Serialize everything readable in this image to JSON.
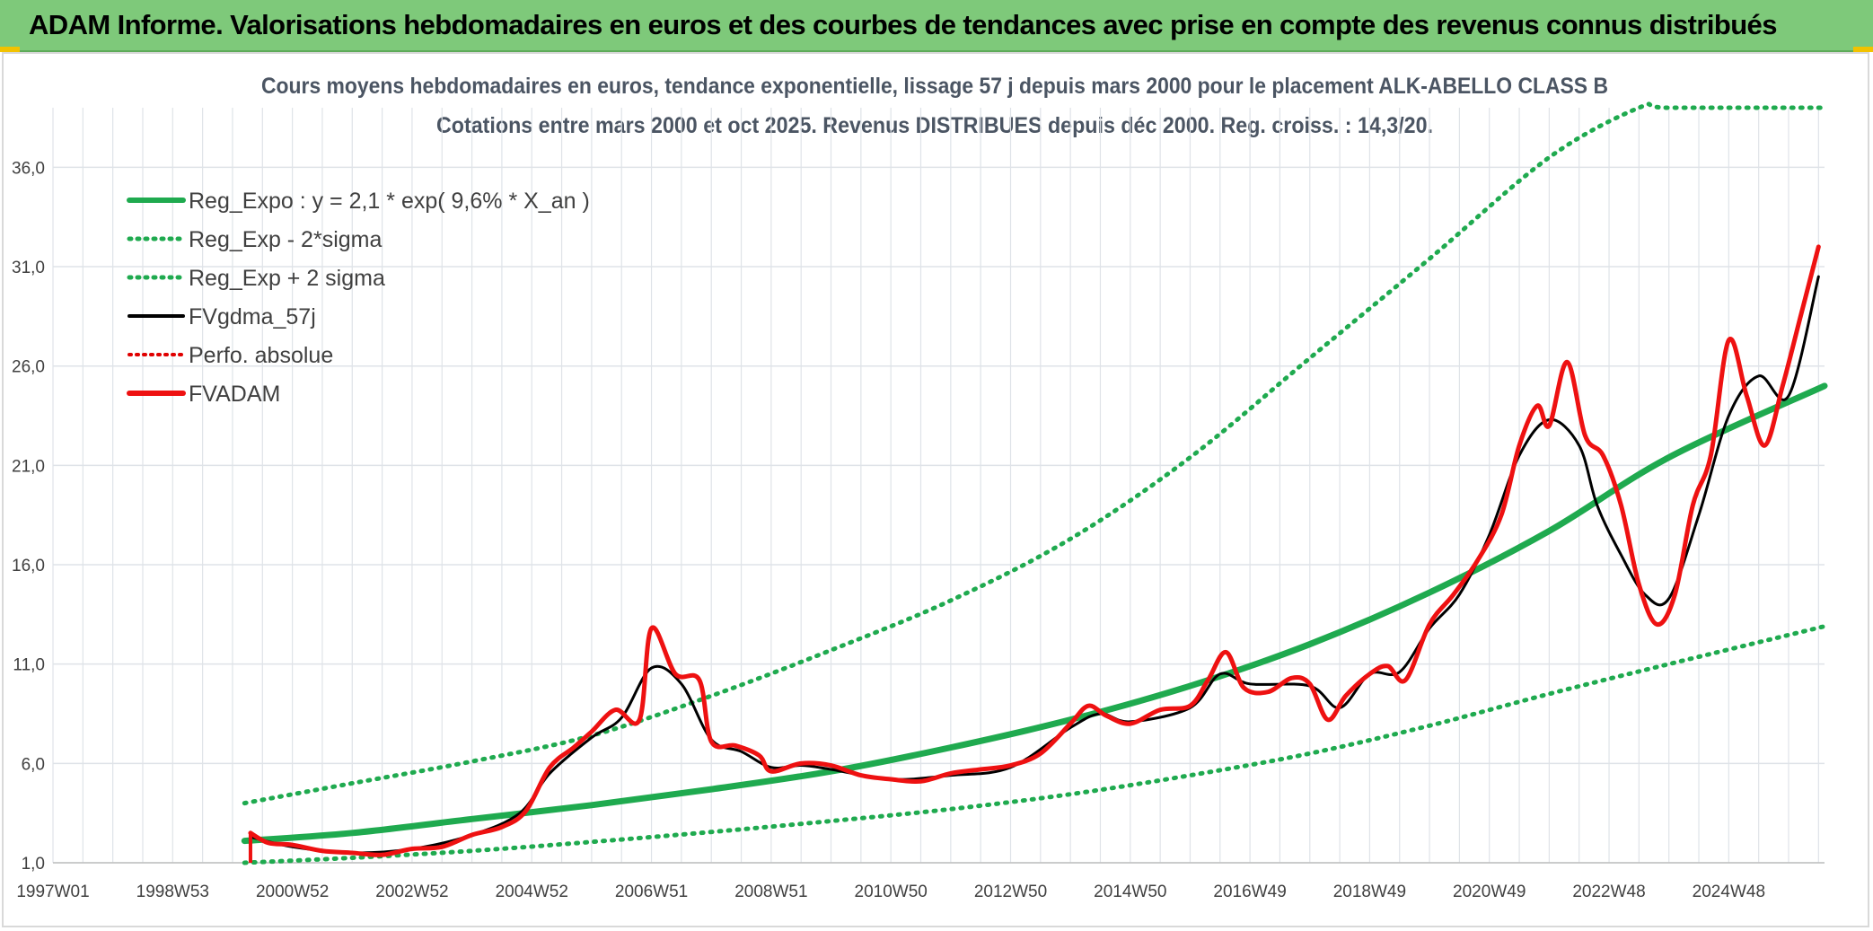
{
  "banner": {
    "title": "ADAM Informe. Valorisations hebdomadaires en euros et des courbes de tendances avec prise en compte des revenus connus distribués"
  },
  "colors": {
    "banner_bg": "#7ec97a",
    "reg_expo": "#1faa4f",
    "sigma": "#1faa4f",
    "fvgdma": "#000000",
    "perfo": "#e00000",
    "fvadam": "#ee1111",
    "grid": "#dfe3e8"
  },
  "chart_data": {
    "type": "line",
    "title": "Cours moyens hebdomadaires en euros, tendance exponentielle, lissage 57 j depuis mars 2000 pour le placement ALK-ABELLO CLASS B",
    "subtitle": "Cotations entre mars 2000 et oct 2025. Revenus DISTRIBUES depuis déc 2000. Reg. croiss. : 14,3/20.",
    "xlabel": "",
    "ylabel": "",
    "x_range_years": [
      1997.0,
      2026.6
    ],
    "ylim": [
      1.0,
      39.0
    ],
    "y_ticks": [
      "1,0",
      "6,0",
      "11,0",
      "16,0",
      "21,0",
      "26,0",
      "31,0",
      "36,0"
    ],
    "x_ticks": [
      {
        "label": "1997W01",
        "year": 1997.0
      },
      {
        "label": "1998W53",
        "year": 1999.0
      },
      {
        "label": "2000W52",
        "year": 2001.0
      },
      {
        "label": "2002W52",
        "year": 2003.0
      },
      {
        "label": "2004W52",
        "year": 2005.0
      },
      {
        "label": "2006W51",
        "year": 2007.0
      },
      {
        "label": "2008W51",
        "year": 2009.0
      },
      {
        "label": "2010W50",
        "year": 2011.0
      },
      {
        "label": "2012W50",
        "year": 2013.0
      },
      {
        "label": "2014W50",
        "year": 2015.0
      },
      {
        "label": "2016W49",
        "year": 2017.0
      },
      {
        "label": "2018W49",
        "year": 2019.0
      },
      {
        "label": "2020W49",
        "year": 2021.0
      },
      {
        "label": "2022W48",
        "year": 2023.0
      },
      {
        "label": "2024W48",
        "year": 2025.0
      }
    ],
    "legend": [
      {
        "label": "Reg_Expo : y = 2,1 * exp( 9,6% *  X_an )",
        "style": "solid-thick",
        "color": "#1faa4f"
      },
      {
        "label": "Reg_Exp - 2*sigma",
        "style": "dotted",
        "color": "#1faa4f"
      },
      {
        "label": "Reg_Exp + 2 sigma",
        "style": "dotted",
        "color": "#1faa4f"
      },
      {
        "label": "FVgdma_57j",
        "style": "solid",
        "color": "#000000"
      },
      {
        "label": "Perfo. absolue",
        "style": "dotted",
        "color": "#e00000"
      },
      {
        "label": "FVADAM",
        "style": "solid-thick",
        "color": "#ee1111"
      }
    ],
    "legend_position": "top-left",
    "grid": true,
    "series": [
      {
        "name": "Reg_Expo : y = 2,1 * exp( 9,6% *  X_an )",
        "x": [
          2000.2,
          2002.0,
          2004.0,
          2006.0,
          2008.0,
          2010.0,
          2012.0,
          2014.0,
          2016.0,
          2018.0,
          2020.0,
          2022.0,
          2024.0,
          2026.6
        ],
        "y": [
          2.1,
          2.5,
          3.2,
          3.9,
          4.7,
          5.6,
          6.8,
          8.2,
          9.9,
          12.0,
          14.6,
          17.7,
          21.4,
          25.0
        ]
      },
      {
        "name": "Reg_Exp - 2*sigma",
        "x": [
          2000.2,
          2002.0,
          2004.0,
          2006.0,
          2008.0,
          2010.0,
          2012.0,
          2014.0,
          2016.0,
          2018.0,
          2020.0,
          2022.0,
          2024.0,
          2026.6
        ],
        "y": [
          1.0,
          1.25,
          1.6,
          2.05,
          2.55,
          3.1,
          3.7,
          4.45,
          5.4,
          6.5,
          7.9,
          9.5,
          11.0,
          12.9
        ]
      },
      {
        "name": "Reg_Exp + 2 sigma",
        "x": [
          2000.2,
          2002.0,
          2004.0,
          2006.0,
          2008.0,
          2010.0,
          2012.0,
          2014.0,
          2016.0,
          2018.0,
          2020.0,
          2022.0,
          2023.5,
          2024.0,
          2026.6
        ],
        "y": [
          4.0,
          5.0,
          6.1,
          7.4,
          9.4,
          11.7,
          14.2,
          17.3,
          21.4,
          26.4,
          31.4,
          36.5,
          39.0,
          39.0,
          39.0
        ]
      },
      {
        "name": "FVgdma_57j",
        "x": [
          2000.3,
          2001.0,
          2002.0,
          2003.0,
          2004.0,
          2004.8,
          2005.3,
          2006.0,
          2006.5,
          2007.0,
          2007.5,
          2008.0,
          2008.5,
          2009.0,
          2009.5,
          2010.0,
          2011.0,
          2012.0,
          2013.0,
          2014.0,
          2014.5,
          2015.0,
          2016.0,
          2016.5,
          2017.0,
          2018.0,
          2018.5,
          2019.0,
          2019.5,
          2020.0,
          2020.5,
          2021.0,
          2021.5,
          2022.0,
          2022.5,
          2022.8,
          2023.2,
          2023.6,
          2024.0,
          2024.5,
          2025.0,
          2025.5,
          2026.0,
          2026.5
        ],
        "y": [
          2.3,
          1.8,
          1.5,
          1.7,
          2.4,
          3.5,
          5.5,
          7.3,
          8.3,
          10.8,
          10.0,
          7.2,
          6.6,
          5.8,
          5.9,
          5.7,
          5.2,
          5.4,
          5.8,
          7.8,
          8.5,
          8.1,
          8.8,
          10.5,
          10.0,
          9.9,
          8.8,
          10.5,
          10.6,
          12.8,
          14.5,
          17.5,
          21.5,
          23.3,
          22.0,
          19.0,
          16.5,
          14.5,
          14.3,
          18.5,
          23.5,
          25.5,
          24.5,
          30.5
        ]
      },
      {
        "name": "FVADAM",
        "x": [
          2000.3,
          2000.6,
          2001.0,
          2001.5,
          2002.0,
          2002.5,
          2003.0,
          2003.5,
          2004.0,
          2004.5,
          2004.9,
          2005.3,
          2005.7,
          2006.0,
          2006.4,
          2006.8,
          2007.0,
          2007.4,
          2007.8,
          2008.0,
          2008.4,
          2008.8,
          2009.0,
          2009.5,
          2010.0,
          2010.5,
          2011.0,
          2011.5,
          2012.0,
          2012.5,
          2013.0,
          2013.5,
          2014.0,
          2014.3,
          2014.6,
          2015.0,
          2015.5,
          2016.0,
          2016.3,
          2016.6,
          2016.9,
          2017.3,
          2017.7,
          2018.0,
          2018.3,
          2018.6,
          2019.0,
          2019.3,
          2019.6,
          2020.0,
          2020.4,
          2020.8,
          2021.2,
          2021.5,
          2021.8,
          2022.0,
          2022.3,
          2022.6,
          2022.9,
          2023.2,
          2023.5,
          2023.8,
          2024.1,
          2024.4,
          2024.7,
          2025.0,
          2025.3,
          2025.6,
          2025.9,
          2026.2,
          2026.5
        ],
        "y": [
          2.5,
          2.0,
          1.9,
          1.6,
          1.5,
          1.4,
          1.7,
          1.8,
          2.4,
          2.8,
          3.6,
          5.8,
          6.8,
          7.6,
          8.7,
          8.2,
          12.8,
          10.5,
          10.2,
          7.1,
          6.9,
          6.4,
          5.6,
          6.0,
          5.9,
          5.4,
          5.2,
          5.1,
          5.5,
          5.7,
          5.9,
          6.5,
          8.0,
          8.9,
          8.4,
          8.0,
          8.7,
          8.9,
          10.2,
          11.6,
          9.8,
          9.6,
          10.3,
          10.0,
          8.2,
          9.4,
          10.5,
          10.9,
          10.2,
          13.0,
          14.5,
          16.2,
          18.5,
          22.0,
          24.0,
          23.0,
          26.2,
          22.5,
          21.5,
          19.0,
          15.0,
          13.0,
          14.5,
          19.0,
          21.5,
          27.3,
          24.5,
          22.0,
          25.0,
          28.5,
          32.0
        ]
      }
    ]
  }
}
